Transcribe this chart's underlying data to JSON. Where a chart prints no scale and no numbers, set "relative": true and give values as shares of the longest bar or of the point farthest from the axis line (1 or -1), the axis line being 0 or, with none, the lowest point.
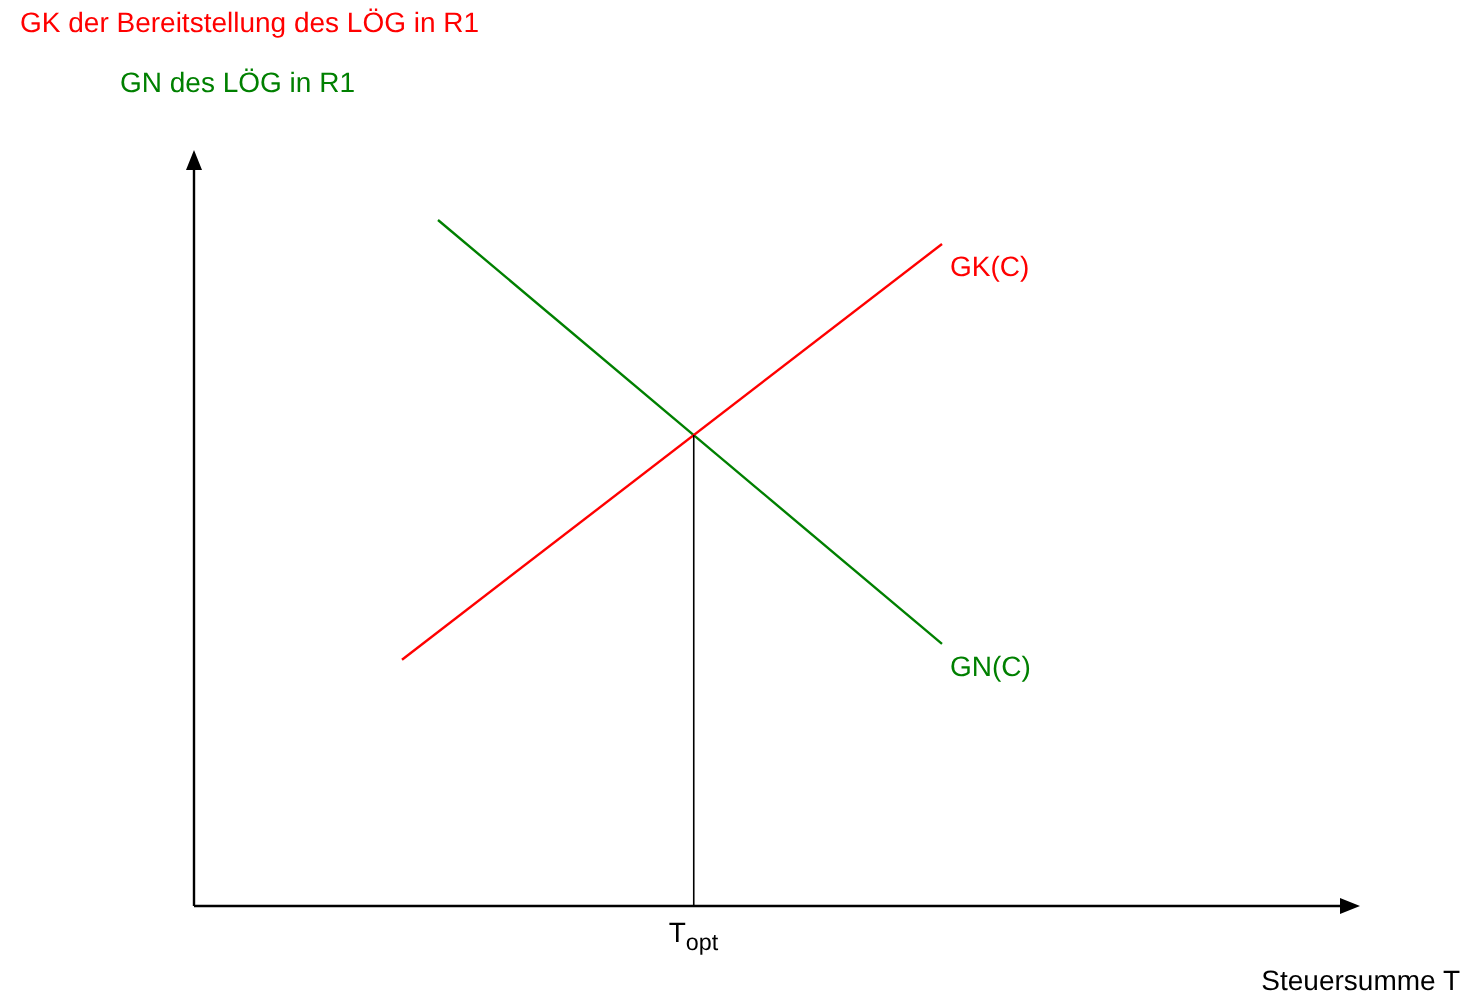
{
  "chart_data": {
    "type": "line",
    "title": "GK der Bereitstellung des LÖG in R1",
    "subtitle": "GN des LÖG in R1",
    "relative": true,
    "legend": false,
    "marker": "none",
    "categories": [
      null,
      null,
      null,
      null,
      null,
      null,
      null,
      null,
      null,
      null,
      null,
      null,
      null,
      null,
      null,
      null
    ],
    "series": [
      {
        "name": "GK(C)",
        "color": "#ff0000",
        "values": [
          0.359,
          null,
          null,
          null,
          null,
          null,
          null,
          null,
          null,
          null,
          null,
          null,
          null,
          null,
          null,
          0.965
        ]
      },
      {
        "name": "GN(C)",
        "color": "#008000",
        "values": [
          null,
          1,
          null,
          null,
          null,
          null,
          null,
          null,
          null,
          null,
          null,
          null,
          null,
          null,
          null,
          0.382
        ]
      }
    ],
    "annotations": [
      "T$_{opt}$",
      "Steuersumme T"
    ]
  }
}
